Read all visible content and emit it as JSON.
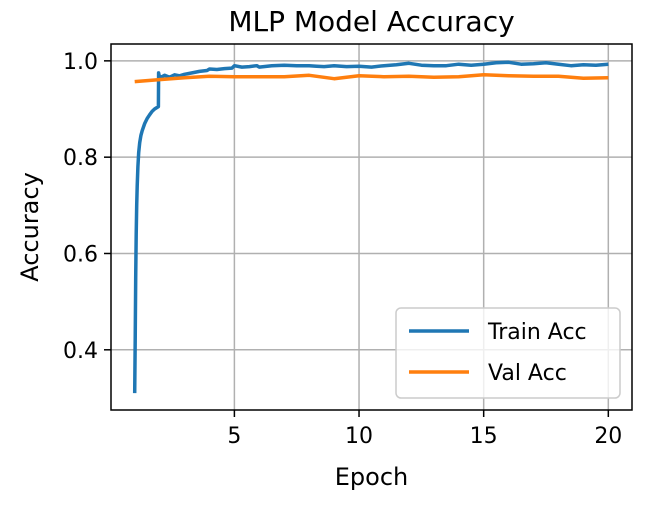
{
  "chart_data": {
    "type": "line",
    "title": "MLP Model Accuracy",
    "xlabel": "Epoch",
    "ylabel": "Accuracy",
    "xlim": [
      0.05,
      20.95
    ],
    "ylim": [
      0.275,
      1.035
    ],
    "xticks": [
      5,
      10,
      15,
      20
    ],
    "yticks": [
      0.4,
      0.6,
      0.8,
      1.0
    ],
    "xtick_labels": [
      "5",
      "10",
      "15",
      "20"
    ],
    "ytick_labels": [
      "0.4",
      "0.6",
      "0.8",
      "1.0"
    ],
    "grid": true,
    "legend_position": "bottom-right",
    "series": [
      {
        "name": "Train Acc",
        "color": "#1f77b4",
        "x": [
          1.0,
          1.02,
          1.04,
          1.06,
          1.08,
          1.1,
          1.13,
          1.16,
          1.2,
          1.25,
          1.3,
          1.4,
          1.5,
          1.6,
          1.7,
          1.8,
          1.95,
          1.96,
          1.98,
          2.0,
          2.1,
          2.2,
          2.4,
          2.6,
          2.8,
          3.0,
          3.3,
          3.6,
          3.9,
          4.0,
          4.3,
          4.6,
          4.9,
          5.0,
          5.3,
          5.6,
          5.9,
          6.0,
          6.5,
          7.0,
          7.5,
          8.0,
          8.3,
          8.6,
          9.0,
          9.5,
          10.0,
          10.5,
          11.0,
          11.5,
          12.0,
          12.5,
          13.0,
          13.5,
          14.0,
          14.5,
          15.0,
          15.5,
          16.0,
          16.5,
          17.0,
          17.5,
          18.0,
          18.5,
          19.0,
          19.5,
          20.0
        ],
        "y": [
          0.31,
          0.42,
          0.55,
          0.64,
          0.7,
          0.74,
          0.78,
          0.81,
          0.83,
          0.845,
          0.855,
          0.87,
          0.88,
          0.888,
          0.895,
          0.9,
          0.905,
          0.975,
          0.97,
          0.968,
          0.967,
          0.97,
          0.966,
          0.971,
          0.969,
          0.972,
          0.975,
          0.978,
          0.98,
          0.983,
          0.982,
          0.984,
          0.985,
          0.99,
          0.987,
          0.988,
          0.99,
          0.987,
          0.99,
          0.991,
          0.99,
          0.99,
          0.989,
          0.988,
          0.99,
          0.988,
          0.989,
          0.987,
          0.99,
          0.992,
          0.995,
          0.991,
          0.99,
          0.99,
          0.993,
          0.991,
          0.993,
          0.996,
          0.997,
          0.993,
          0.994,
          0.996,
          0.993,
          0.99,
          0.992,
          0.991,
          0.993
        ]
      },
      {
        "name": "Val Acc",
        "color": "#ff7f0e",
        "x": [
          1,
          2,
          3,
          4,
          5,
          6,
          7,
          8,
          9,
          10,
          11,
          12,
          13,
          14,
          15,
          16,
          17,
          18,
          19,
          20
        ],
        "y": [
          0.957,
          0.961,
          0.965,
          0.968,
          0.967,
          0.967,
          0.967,
          0.97,
          0.963,
          0.969,
          0.967,
          0.968,
          0.966,
          0.967,
          0.971,
          0.969,
          0.968,
          0.968,
          0.964,
          0.965
        ]
      }
    ]
  }
}
